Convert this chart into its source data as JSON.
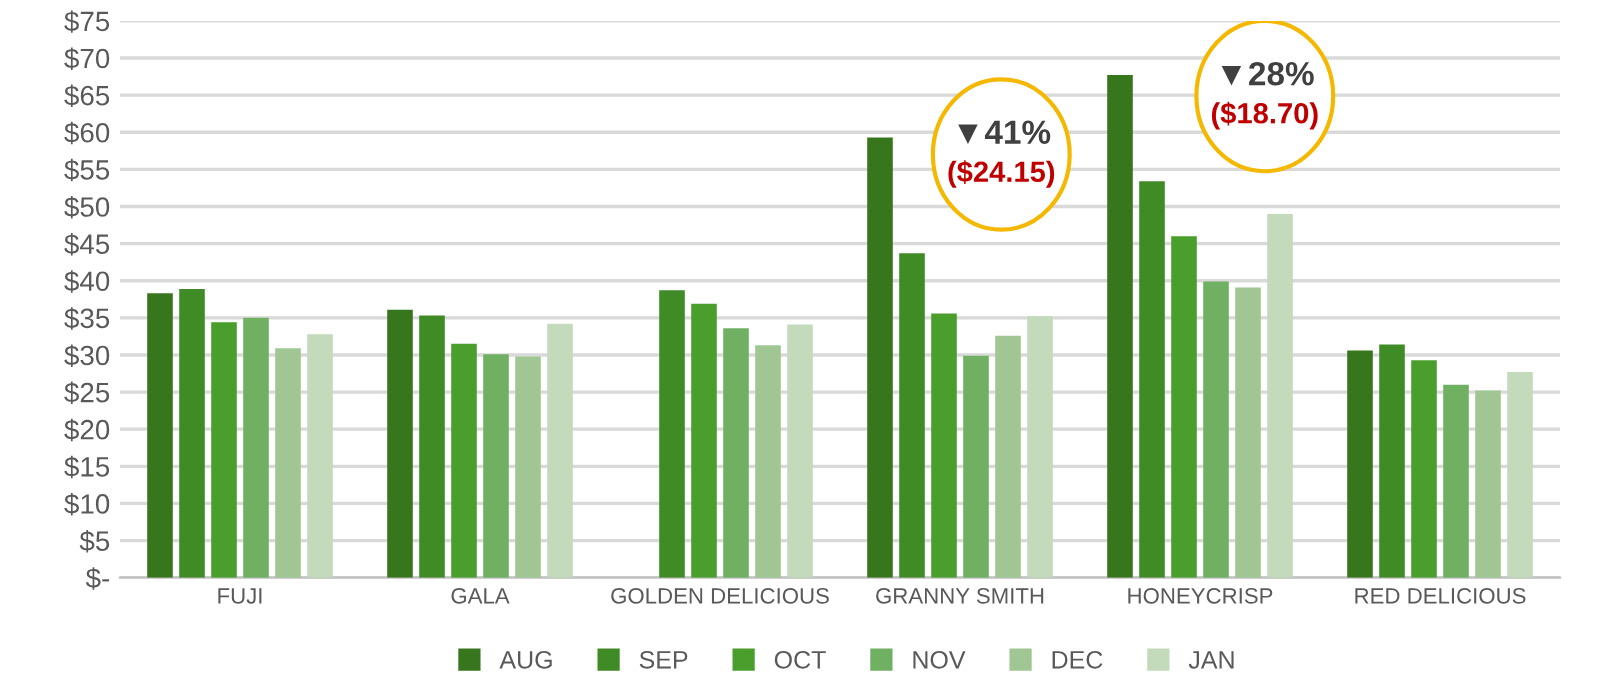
{
  "chart_data": {
    "type": "bar",
    "categories": [
      "FUJI",
      "GALA",
      "GOLDEN DELICIOUS",
      "GRANNY SMITH",
      "HONEYCRISP",
      "RED DELICIOUS"
    ],
    "series": [
      {
        "name": "AUG",
        "color": "#38761d",
        "values": [
          38.3,
          36.1,
          null,
          59.3,
          67.7,
          30.6
        ]
      },
      {
        "name": "SEP",
        "color": "#3f8b26",
        "values": [
          38.9,
          35.3,
          38.7,
          43.7,
          53.4,
          31.4
        ]
      },
      {
        "name": "OCT",
        "color": "#4a9e2c",
        "values": [
          34.4,
          31.5,
          36.9,
          35.6,
          46.0,
          29.3
        ]
      },
      {
        "name": "NOV",
        "color": "#70b062",
        "values": [
          35.0,
          30.1,
          33.6,
          29.9,
          39.9,
          26.0
        ]
      },
      {
        "name": "DEC",
        "color": "#9fc693",
        "values": [
          30.9,
          29.8,
          31.3,
          32.6,
          39.1,
          25.2
        ]
      },
      {
        "name": "JAN",
        "color": "#c3dabb",
        "values": [
          32.8,
          34.2,
          34.1,
          35.2,
          49.0,
          27.7
        ]
      }
    ],
    "ylim": [
      0,
      75
    ],
    "yticks": [
      {
        "value": 0,
        "label": "$-"
      },
      {
        "value": 5,
        "label": "$5"
      },
      {
        "value": 10,
        "label": "$10"
      },
      {
        "value": 15,
        "label": "$15"
      },
      {
        "value": 20,
        "label": "$20"
      },
      {
        "value": 25,
        "label": "$25"
      },
      {
        "value": 30,
        "label": "$30"
      },
      {
        "value": 35,
        "label": "$35"
      },
      {
        "value": 40,
        "label": "$40"
      },
      {
        "value": 45,
        "label": "$45"
      },
      {
        "value": 50,
        "label": "$50"
      },
      {
        "value": 55,
        "label": "$55"
      },
      {
        "value": 60,
        "label": "$60"
      },
      {
        "value": 65,
        "label": "$65"
      },
      {
        "value": 70,
        "label": "$70"
      },
      {
        "value": 75,
        "label": "$75"
      }
    ],
    "grid": "y",
    "legend": "bottom",
    "annotations": [
      "▼41%",
      "($24.15)",
      "▼28%",
      "($18.70)"
    ]
  }
}
